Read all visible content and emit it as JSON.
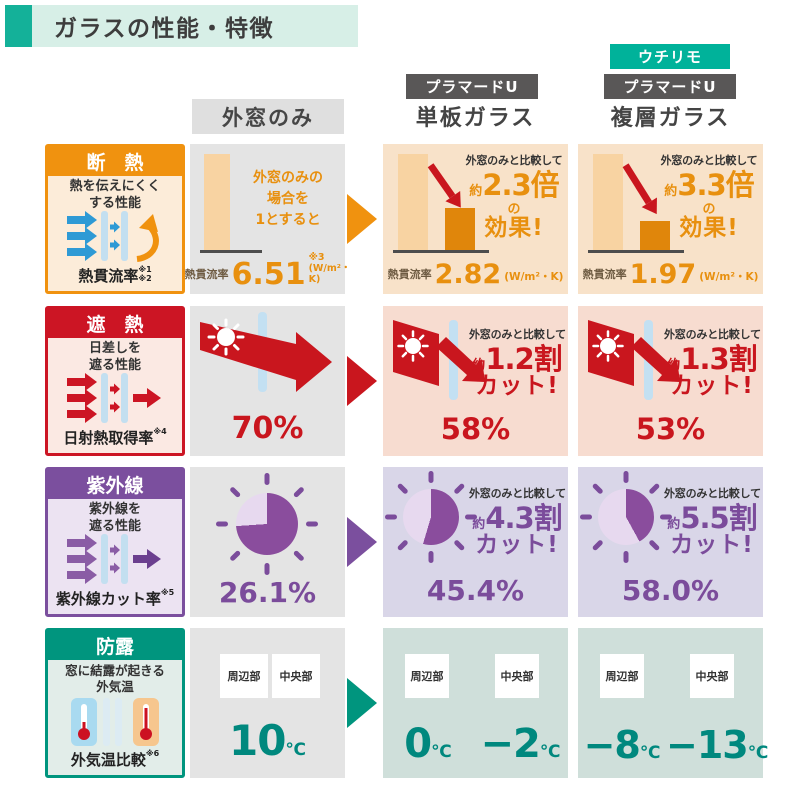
{
  "theme": {
    "orange": "#e8900f",
    "orange_header": "#f0920f",
    "red": "#c9161e",
    "purple": "#7b4c9b",
    "purple_dark": "#8a4d9d",
    "purple_light": "#e7d9ef",
    "teal": "#00887e",
    "teal_badge": "#00b29a",
    "badge_gray": "#595757",
    "title_accent": "#14b199",
    "title_bg": "#d7efe7",
    "cell_gray": "#e4e4e4"
  },
  "title": "ガラスの性能・特徴",
  "columns": [
    {
      "name": "外窓のみ"
    },
    {
      "brand": "プラマードU",
      "name": "単板ガラス"
    },
    {
      "brand_top": "ウチリモ",
      "brand": "プラマードU",
      "name": "複層ガラス"
    }
  ],
  "rows": [
    {
      "label": {
        "title": "断　熱",
        "desc": "熱を伝えにくく\nする性能",
        "metric": "熱貫流率",
        "note": "※1\n※2"
      },
      "base": {
        "annotation": "外窓のみの\n場合を\n1とすると",
        "metric": "熱貫流率",
        "value": "6.51",
        "note": "※3",
        "unit": "(W/m²・K)"
      },
      "single": {
        "compare": "外窓のみと比較して",
        "approx": "約",
        "big": "2.3倍",
        "suffix": "の",
        "line2": "効果!",
        "metric": "熱貫流率",
        "value": "2.82",
        "unit": "(W/m²・K)"
      },
      "double": {
        "compare": "外窓のみと比較して",
        "approx": "約",
        "big": "3.3倍",
        "suffix": "の",
        "line2": "効果!",
        "metric": "熱貫流率",
        "value": "1.97",
        "unit": "(W/m²・K)"
      }
    },
    {
      "label": {
        "title": "遮　熱",
        "desc": "日差しを\n遮る性能",
        "metric": "日射熱取得率",
        "note": "※4"
      },
      "base": {
        "value": "70%"
      },
      "single": {
        "compare": "外窓のみと比較して",
        "approx": "約",
        "big": "1.2割",
        "line2": "カット!",
        "value": "58%"
      },
      "double": {
        "compare": "外窓のみと比較して",
        "approx": "約",
        "big": "1.3割",
        "line2": "カット!",
        "value": "53%"
      }
    },
    {
      "label": {
        "title": "紫外線",
        "desc": "紫外線を\n遮る性能",
        "metric": "紫外線カット率",
        "note": "※5"
      },
      "base": {
        "value": "26.1%"
      },
      "single": {
        "compare": "外窓のみと比較して",
        "approx": "約",
        "big": "4.3割",
        "line2": "カット!",
        "value": "45.4%"
      },
      "double": {
        "compare": "外窓のみと比較して",
        "approx": "約",
        "big": "5.5割",
        "line2": "カット!",
        "value": "58.0%"
      }
    },
    {
      "label": {
        "title": "防露",
        "desc": "窓に結露が起きる\n外気温",
        "metric": "外気温比較",
        "note": "※6"
      },
      "box_labels": {
        "left": "周辺部",
        "right": "中央部"
      },
      "base": {
        "value": "10",
        "unit": "℃"
      },
      "single": {
        "left": "0",
        "right": "−2",
        "unit": "℃"
      },
      "double": {
        "left": "−8",
        "right": "−13",
        "unit": "℃"
      }
    }
  ],
  "chart_data": {
    "type": "table",
    "title": "ガラスの性能・特徴",
    "columns": [
      "外窓のみ",
      "プラマードU 単板ガラス",
      "ウチリモ プラマードU 複層ガラス"
    ],
    "metrics": [
      {
        "name": "熱貫流率 (W/m²・K)",
        "values": [
          6.51,
          2.82,
          1.97
        ],
        "effect": [
          null,
          "約2.3倍の効果",
          "約3.3倍の効果"
        ]
      },
      {
        "name": "日射熱取得率",
        "values": [
          "70%",
          "58%",
          "53%"
        ],
        "effect": [
          null,
          "約1.2割カット",
          "約1.3割カット"
        ]
      },
      {
        "name": "紫外線カット率",
        "values": [
          "26.1%",
          "45.4%",
          "58.0%"
        ],
        "effect": [
          null,
          "約4.3割カット",
          "約5.5割カット"
        ]
      },
      {
        "name": "外気温比較（窓に結露が起きる外気温）",
        "values": [
          "周辺部/中央部 10℃",
          "周辺部 0℃ / 中央部 −2℃",
          "周辺部 −8℃ / 中央部 −13℃"
        ]
      }
    ]
  }
}
